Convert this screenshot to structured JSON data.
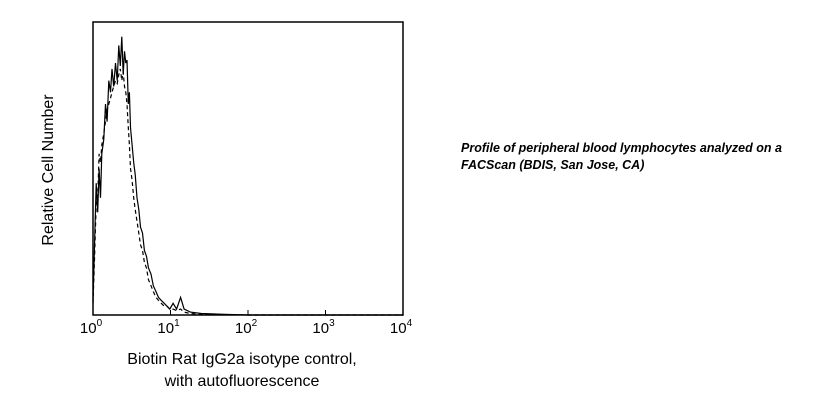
{
  "caption": "Profile of peripheral blood lymphocytes analyzed on a FACScan (BDIS, San Jose, CA)",
  "chart_data": {
    "type": "line",
    "title": "",
    "xlabel_lines": [
      "Biotin Rat IgG2a isotype control,",
      "with autofluorescence"
    ],
    "ylabel": "Relative Cell Number",
    "x_scale": "log",
    "xlim": [
      1,
      10000
    ],
    "ylim": [
      0,
      1
    ],
    "x_ticks": [
      {
        "base": "10",
        "exp": "0",
        "value": 1
      },
      {
        "base": "10",
        "exp": "1",
        "value": 10
      },
      {
        "base": "10",
        "exp": "2",
        "value": 100
      },
      {
        "base": "10",
        "exp": "3",
        "value": 1000
      },
      {
        "base": "10",
        "exp": "4",
        "value": 10000
      }
    ],
    "y_ticks_shown": false,
    "grid": false,
    "series": [
      {
        "style": "solid",
        "color": "#000000",
        "x": [
          1.0,
          1.05,
          1.1,
          1.15,
          1.2,
          1.25,
          1.3,
          1.38,
          1.45,
          1.52,
          1.6,
          1.68,
          1.76,
          1.85,
          1.95,
          2.05,
          2.15,
          2.25,
          2.35,
          2.45,
          2.55,
          2.65,
          2.75,
          2.85,
          2.95,
          3.05,
          3.2,
          3.35,
          3.5,
          3.7,
          3.9,
          4.1,
          4.35,
          4.6,
          4.9,
          5.2,
          5.6,
          6.0,
          6.5,
          7.0,
          7.6,
          8.3,
          9.0,
          9.8,
          10.8,
          12.0,
          13.5,
          15.0,
          18.0,
          25.0,
          50.0,
          100,
          1000,
          10000
        ],
        "y": [
          0.05,
          0.25,
          0.45,
          0.35,
          0.5,
          0.4,
          0.55,
          0.6,
          0.72,
          0.66,
          0.8,
          0.76,
          0.84,
          0.78,
          0.86,
          0.8,
          0.92,
          0.85,
          0.95,
          0.82,
          0.9,
          0.86,
          0.87,
          0.72,
          0.76,
          0.64,
          0.58,
          0.52,
          0.48,
          0.4,
          0.36,
          0.3,
          0.28,
          0.22,
          0.2,
          0.16,
          0.14,
          0.1,
          0.08,
          0.06,
          0.05,
          0.04,
          0.03,
          0.02,
          0.04,
          0.02,
          0.06,
          0.02,
          0.01,
          0.005,
          0.002,
          0.0,
          0.0,
          0.0
        ]
      },
      {
        "style": "dashed",
        "color": "#000000",
        "x": [
          1.0,
          1.05,
          1.1,
          1.15,
          1.2,
          1.25,
          1.3,
          1.38,
          1.45,
          1.52,
          1.6,
          1.68,
          1.76,
          1.85,
          1.95,
          2.05,
          2.15,
          2.25,
          2.35,
          2.45,
          2.55,
          2.65,
          2.75,
          2.85,
          2.95,
          3.05,
          3.2,
          3.35,
          3.5,
          3.7,
          3.9,
          4.1,
          4.35,
          4.6,
          4.9,
          5.2,
          5.6,
          6.0,
          6.5,
          7.0,
          7.6,
          8.3,
          9.0,
          9.8,
          10.8,
          12.0,
          13.5,
          15.0,
          18.0,
          25.0,
          50.0,
          100,
          1000,
          10000
        ],
        "y": [
          0.04,
          0.2,
          0.38,
          0.4,
          0.55,
          0.52,
          0.58,
          0.62,
          0.66,
          0.7,
          0.72,
          0.74,
          0.76,
          0.78,
          0.8,
          0.79,
          0.82,
          0.84,
          0.8,
          0.83,
          0.78,
          0.76,
          0.72,
          0.64,
          0.58,
          0.5,
          0.46,
          0.4,
          0.36,
          0.32,
          0.28,
          0.24,
          0.22,
          0.18,
          0.16,
          0.12,
          0.1,
          0.08,
          0.06,
          0.05,
          0.04,
          0.03,
          0.03,
          0.02,
          0.02,
          0.015,
          0.02,
          0.01,
          0.005,
          0.002,
          0.001,
          0.0,
          0.0,
          0.0
        ]
      }
    ]
  }
}
